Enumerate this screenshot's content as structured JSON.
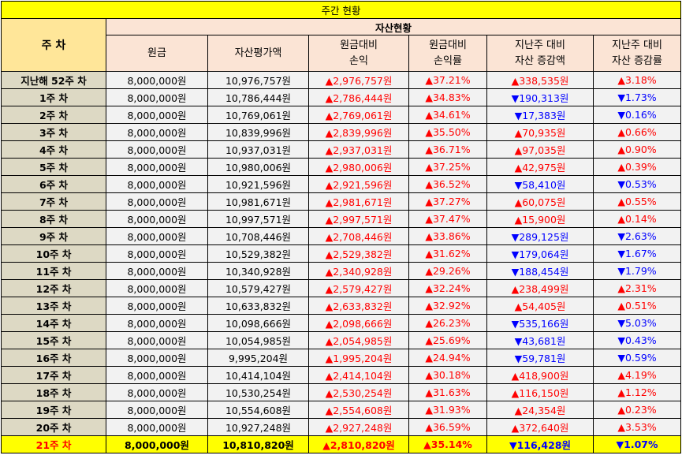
{
  "title": "주간 현황",
  "header": {
    "week_col": "주 차",
    "asset_group": "자산현황",
    "col_principal": "원금",
    "col_valuation": "자산평가액",
    "col_pnl_l1": "원금대비",
    "col_pnl_l2": "손익",
    "col_rate_l1": "원금대비",
    "col_rate_l2": "손익률",
    "col_chg_l1": "지난주 대비",
    "col_chg_l2": "자산 증감액",
    "col_chgrate_l1": "지난주 대비",
    "col_chgrate_l2": "자산 증감률"
  },
  "symbols": {
    "up": "▲",
    "down": "▼"
  },
  "colors": {
    "up": "#ff0000",
    "down": "#0000ff",
    "title_bg": "#ffff00",
    "header_bg": "#fbe4d5",
    "week_bg": "#ddd9c4"
  },
  "rows": [
    {
      "week": "지난해 52주 차",
      "principal": "8,000,000원",
      "valuation": "10,976,757원",
      "pnl_dir": "up",
      "pnl": "2,976,757원",
      "rate_dir": "up",
      "rate": "37.21%",
      "chg_dir": "up",
      "chg": "338,535원",
      "chgrate_dir": "up",
      "chgrate": "3.18%"
    },
    {
      "week": "1주 차",
      "principal": "8,000,000원",
      "valuation": "10,786,444원",
      "pnl_dir": "up",
      "pnl": "2,786,444원",
      "rate_dir": "up",
      "rate": "34.83%",
      "chg_dir": "down",
      "chg": "190,313원",
      "chgrate_dir": "down",
      "chgrate": "1.73%"
    },
    {
      "week": "2주 차",
      "principal": "8,000,000원",
      "valuation": "10,769,061원",
      "pnl_dir": "up",
      "pnl": "2,769,061원",
      "rate_dir": "up",
      "rate": "34.61%",
      "chg_dir": "down",
      "chg": "17,383원",
      "chgrate_dir": "down",
      "chgrate": "0.16%"
    },
    {
      "week": "3주 차",
      "principal": "8,000,000원",
      "valuation": "10,839,996원",
      "pnl_dir": "up",
      "pnl": "2,839,996원",
      "rate_dir": "up",
      "rate": "35.50%",
      "chg_dir": "up",
      "chg": "70,935원",
      "chgrate_dir": "up",
      "chgrate": "0.66%"
    },
    {
      "week": "4주 차",
      "principal": "8,000,000원",
      "valuation": "10,937,031원",
      "pnl_dir": "up",
      "pnl": "2,937,031원",
      "rate_dir": "up",
      "rate": "36.71%",
      "chg_dir": "up",
      "chg": "97,035원",
      "chgrate_dir": "up",
      "chgrate": "0.90%"
    },
    {
      "week": "5주 차",
      "principal": "8,000,000원",
      "valuation": "10,980,006원",
      "pnl_dir": "up",
      "pnl": "2,980,006원",
      "rate_dir": "up",
      "rate": "37.25%",
      "chg_dir": "up",
      "chg": "42,975원",
      "chgrate_dir": "up",
      "chgrate": "0.39%"
    },
    {
      "week": "6주 차",
      "principal": "8,000,000원",
      "valuation": "10,921,596원",
      "pnl_dir": "up",
      "pnl": "2,921,596원",
      "rate_dir": "up",
      "rate": "36.52%",
      "chg_dir": "down",
      "chg": "58,410원",
      "chgrate_dir": "down",
      "chgrate": "0.53%"
    },
    {
      "week": "7주 차",
      "principal": "8,000,000원",
      "valuation": "10,981,671원",
      "pnl_dir": "up",
      "pnl": "2,981,671원",
      "rate_dir": "up",
      "rate": "37.27%",
      "chg_dir": "up",
      "chg": "60,075원",
      "chgrate_dir": "up",
      "chgrate": "0.55%"
    },
    {
      "week": "8주 차",
      "principal": "8,000,000원",
      "valuation": "10,997,571원",
      "pnl_dir": "up",
      "pnl": "2,997,571원",
      "rate_dir": "up",
      "rate": "37.47%",
      "chg_dir": "up",
      "chg": "15,900원",
      "chgrate_dir": "up",
      "chgrate": "0.14%"
    },
    {
      "week": "9주 차",
      "principal": "8,000,000원",
      "valuation": "10,708,446원",
      "pnl_dir": "up",
      "pnl": "2,708,446원",
      "rate_dir": "up",
      "rate": "33.86%",
      "chg_dir": "down",
      "chg": "289,125원",
      "chgrate_dir": "down",
      "chgrate": "2.63%"
    },
    {
      "week": "10주 차",
      "principal": "8,000,000원",
      "valuation": "10,529,382원",
      "pnl_dir": "up",
      "pnl": "2,529,382원",
      "rate_dir": "up",
      "rate": "31.62%",
      "chg_dir": "down",
      "chg": "179,064원",
      "chgrate_dir": "down",
      "chgrate": "1.67%"
    },
    {
      "week": "11주 차",
      "principal": "8,000,000원",
      "valuation": "10,340,928원",
      "pnl_dir": "up",
      "pnl": "2,340,928원",
      "rate_dir": "up",
      "rate": "29.26%",
      "chg_dir": "down",
      "chg": "188,454원",
      "chgrate_dir": "down",
      "chgrate": "1.79%"
    },
    {
      "week": "12주 차",
      "principal": "8,000,000원",
      "valuation": "10,579,427원",
      "pnl_dir": "up",
      "pnl": "2,579,427원",
      "rate_dir": "up",
      "rate": "32.24%",
      "chg_dir": "up",
      "chg": "238,499원",
      "chgrate_dir": "up",
      "chgrate": "2.31%"
    },
    {
      "week": "13주 차",
      "principal": "8,000,000원",
      "valuation": "10,633,832원",
      "pnl_dir": "up",
      "pnl": "2,633,832원",
      "rate_dir": "up",
      "rate": "32.92%",
      "chg_dir": "up",
      "chg": "54,405원",
      "chgrate_dir": "up",
      "chgrate": "0.51%"
    },
    {
      "week": "14주 차",
      "principal": "8,000,000원",
      "valuation": "10,098,666원",
      "pnl_dir": "up",
      "pnl": "2,098,666원",
      "rate_dir": "up",
      "rate": "26.23%",
      "chg_dir": "down",
      "chg": "535,166원",
      "chgrate_dir": "down",
      "chgrate": "5.03%"
    },
    {
      "week": "15주 차",
      "principal": "8,000,000원",
      "valuation": "10,054,985원",
      "pnl_dir": "up",
      "pnl": "2,054,985원",
      "rate_dir": "up",
      "rate": "25.69%",
      "chg_dir": "down",
      "chg": "43,681원",
      "chgrate_dir": "down",
      "chgrate": "0.43%"
    },
    {
      "week": "16주 차",
      "principal": "8,000,000원",
      "valuation": "9,995,204원",
      "pnl_dir": "up",
      "pnl": "1,995,204원",
      "rate_dir": "up",
      "rate": "24.94%",
      "chg_dir": "down",
      "chg": "59,781원",
      "chgrate_dir": "down",
      "chgrate": "0.59%"
    },
    {
      "week": "17주 차",
      "principal": "8,000,000원",
      "valuation": "10,414,104원",
      "pnl_dir": "up",
      "pnl": "2,414,104원",
      "rate_dir": "up",
      "rate": "30.18%",
      "chg_dir": "up",
      "chg": "418,900원",
      "chgrate_dir": "up",
      "chgrate": "4.19%"
    },
    {
      "week": "18주 차",
      "principal": "8,000,000원",
      "valuation": "10,530,254원",
      "pnl_dir": "up",
      "pnl": "2,530,254원",
      "rate_dir": "up",
      "rate": "31.63%",
      "chg_dir": "up",
      "chg": "116,150원",
      "chgrate_dir": "up",
      "chgrate": "1.12%"
    },
    {
      "week": "19주 차",
      "principal": "8,000,000원",
      "valuation": "10,554,608원",
      "pnl_dir": "up",
      "pnl": "2,554,608원",
      "rate_dir": "up",
      "rate": "31.93%",
      "chg_dir": "up",
      "chg": "24,354원",
      "chgrate_dir": "up",
      "chgrate": "0.23%"
    },
    {
      "week": "20주 차",
      "principal": "8,000,000원",
      "valuation": "10,927,248원",
      "pnl_dir": "up",
      "pnl": "2,927,248원",
      "rate_dir": "up",
      "rate": "36.59%",
      "chg_dir": "up",
      "chg": "372,640원",
      "chgrate_dir": "up",
      "chgrate": "3.53%"
    },
    {
      "week": "21주 차",
      "principal": "8,000,000원",
      "valuation": "10,810,820원",
      "pnl_dir": "up",
      "pnl": "2,810,820원",
      "rate_dir": "up",
      "rate": "35.14%",
      "chg_dir": "down",
      "chg": "116,428원",
      "chgrate_dir": "down",
      "chgrate": "1.07%",
      "current": true
    }
  ]
}
